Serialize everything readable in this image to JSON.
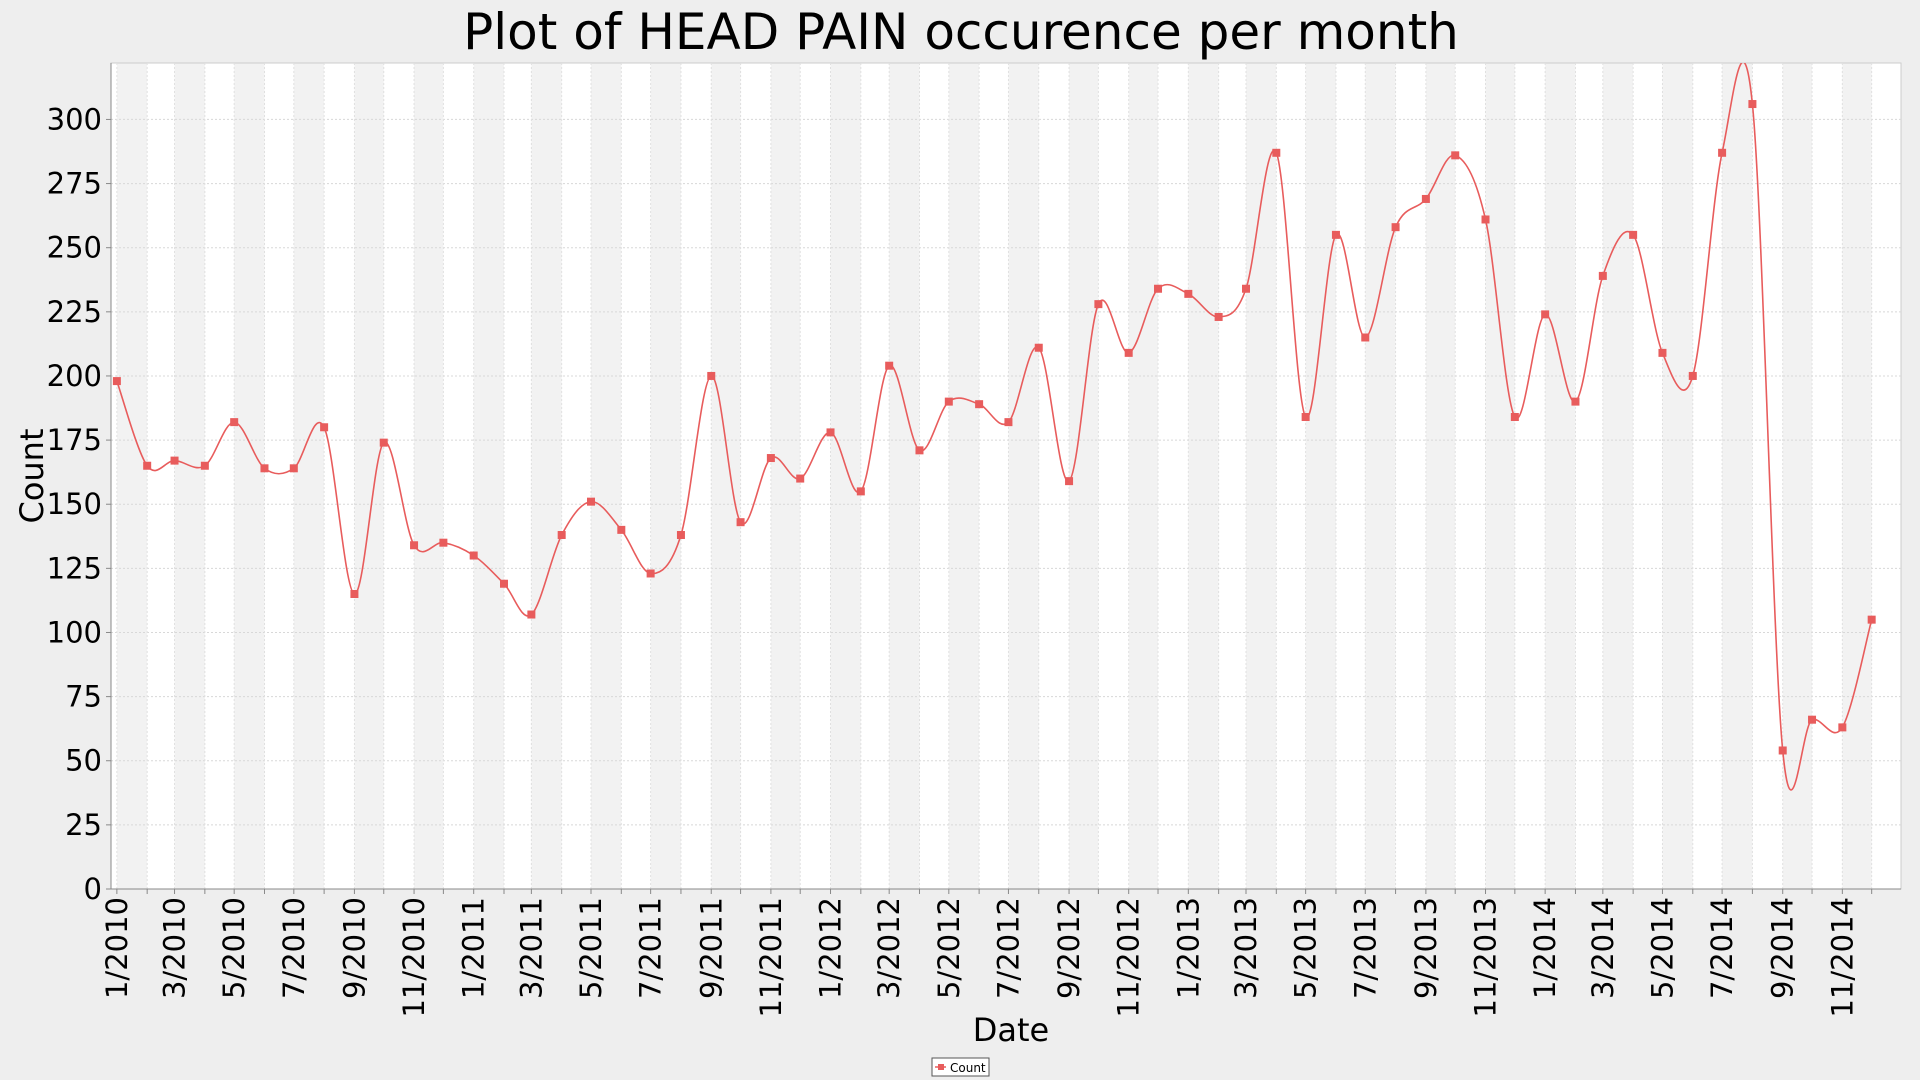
{
  "chart_data": {
    "type": "line",
    "title": "Plot of HEAD PAIN occurence per month",
    "xlabel": "Date",
    "ylabel": "Count",
    "ylim": [
      0,
      322
    ],
    "yticks": [
      0,
      25,
      50,
      75,
      100,
      125,
      150,
      175,
      200,
      225,
      250,
      275,
      300
    ],
    "xlim": [
      "2009-12-26",
      "2014-12-31"
    ],
    "x_tick_labels": [
      "1/2010",
      "3/2010",
      "5/2010",
      "7/2010",
      "9/2010",
      "11/2010",
      "1/2011",
      "3/2011",
      "5/2011",
      "7/2011",
      "9/2011",
      "11/2011",
      "1/2012",
      "3/2012",
      "5/2012",
      "7/2012",
      "9/2012",
      "11/2012",
      "1/2013",
      "3/2013",
      "5/2013",
      "7/2013",
      "9/2013",
      "11/2013",
      "1/2014",
      "3/2014",
      "5/2014",
      "7/2014",
      "9/2014",
      "11/2014"
    ],
    "grid": true,
    "legend_position": "bottom-center",
    "series_color": "#e85c5c",
    "series": [
      {
        "name": "Count",
        "x": [
          "2010-01",
          "2010-02",
          "2010-03",
          "2010-04",
          "2010-05",
          "2010-06",
          "2010-07",
          "2010-08",
          "2010-09",
          "2010-10",
          "2010-11",
          "2010-12",
          "2011-01",
          "2011-02",
          "2011-03",
          "2011-04",
          "2011-05",
          "2011-06",
          "2011-07",
          "2011-08",
          "2011-09",
          "2011-10",
          "2011-11",
          "2011-12",
          "2012-01",
          "2012-02",
          "2012-03",
          "2012-04",
          "2012-05",
          "2012-06",
          "2012-07",
          "2012-08",
          "2012-09",
          "2012-10",
          "2012-11",
          "2012-12",
          "2013-01",
          "2013-02",
          "2013-03",
          "2013-04",
          "2013-05",
          "2013-06",
          "2013-07",
          "2013-08",
          "2013-09",
          "2013-10",
          "2013-11",
          "2013-12",
          "2014-01",
          "2014-02",
          "2014-03",
          "2014-04",
          "2014-05",
          "2014-06",
          "2014-07",
          "2014-08",
          "2014-09",
          "2014-10",
          "2014-11",
          "2014-12"
        ],
        "values": [
          198,
          165,
          167,
          165,
          182,
          164,
          164,
          180,
          115,
          174,
          134,
          135,
          130,
          119,
          107,
          138,
          151,
          140,
          123,
          138,
          200,
          143,
          168,
          160,
          178,
          155,
          204,
          171,
          190,
          189,
          182,
          211,
          159,
          228,
          209,
          234,
          232,
          223,
          234,
          287,
          184,
          255,
          215,
          258,
          269,
          286,
          261,
          184,
          224,
          190,
          239,
          255,
          209,
          200,
          287,
          306,
          54,
          66,
          63,
          105
        ]
      }
    ]
  }
}
